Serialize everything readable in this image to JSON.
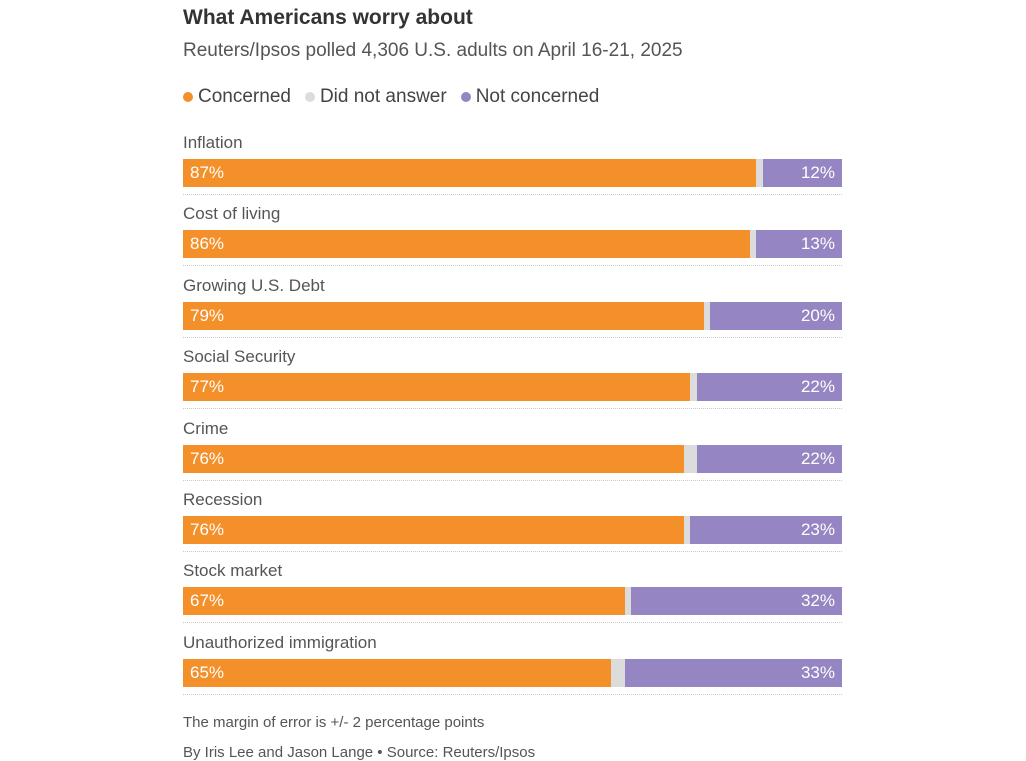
{
  "colors": {
    "concerned": "#f4902a",
    "no_answer": "#dcdcdc",
    "not_concerned": "#9585c2"
  },
  "legend": [
    {
      "label": "Concerned",
      "color": "#f4902a"
    },
    {
      "label": "Did not answer",
      "color": "#dcdcdc"
    },
    {
      "label": "Not concerned",
      "color": "#9585c2"
    }
  ],
  "chart_data": {
    "type": "bar",
    "orientation": "horizontal",
    "stacked": true,
    "title": "What Americans worry about",
    "subtitle": "Reuters/Ipsos polled 4,306 U.S. adults on April 16-21, 2025",
    "categories": [
      "Inflation",
      "Cost of living",
      "Growing U.S. Debt",
      "Social Security",
      "Crime",
      "Recession",
      "Stock market",
      "Unauthorized immigration"
    ],
    "series": [
      {
        "name": "Concerned",
        "values": [
          87,
          86,
          79,
          77,
          76,
          76,
          67,
          65
        ],
        "labels": [
          "87%",
          "86%",
          "79%",
          "77%",
          "76%",
          "76%",
          "67%",
          "65%"
        ]
      },
      {
        "name": "Did not answer",
        "values": [
          1,
          1,
          1,
          1,
          2,
          1,
          1,
          2
        ]
      },
      {
        "name": "Not concerned",
        "values": [
          12,
          13,
          20,
          22,
          22,
          23,
          32,
          33
        ],
        "labels": [
          "12%",
          "13%",
          "20%",
          "22%",
          "22%",
          "23%",
          "32%",
          "33%"
        ]
      }
    ],
    "xlim": [
      0,
      100
    ],
    "legend_position": "top-left",
    "note": "The margin of error is +/- 2 percentage points",
    "credit": "By Iris Lee and Jason Lange • Source: Reuters/Ipsos"
  }
}
